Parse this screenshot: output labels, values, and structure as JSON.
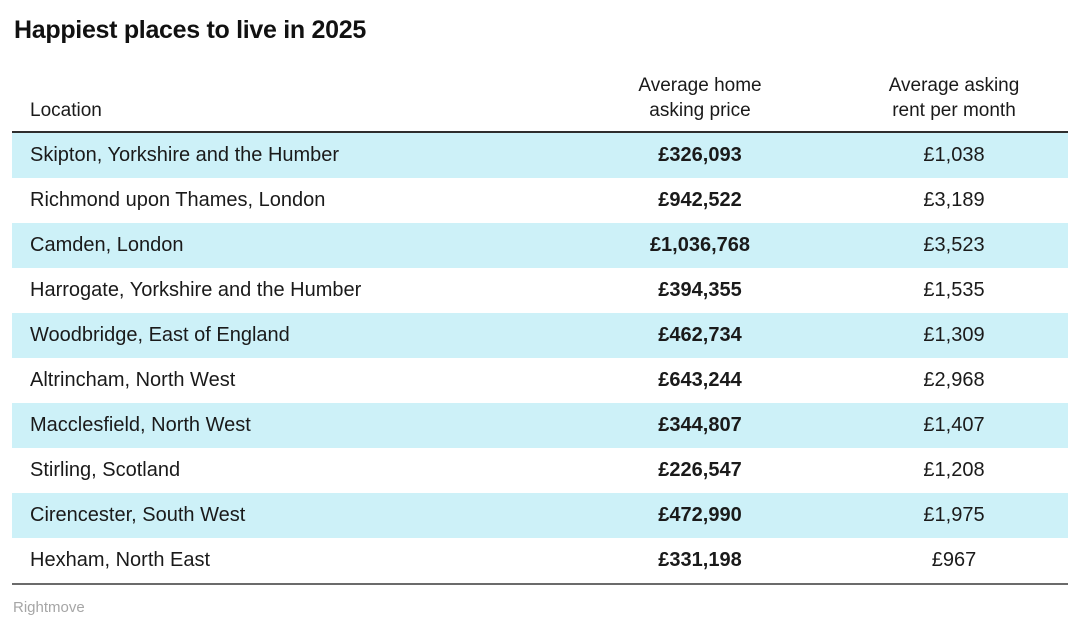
{
  "title": "Happiest places to live in 2025",
  "source": "Rightmove",
  "colors": {
    "row_stripe": "#cdf1f8",
    "header_border": "#2e2e2e",
    "bottom_border": "#6b6b6b",
    "text": "#1a1a1a",
    "source_text": "#a6a6a6"
  },
  "table": {
    "headers": {
      "location": "Location",
      "price": "Average home\nasking price",
      "rent": "Average asking\nrent per month"
    },
    "rows": [
      {
        "location": "Skipton, Yorkshire and the Humber",
        "price": "£326,093",
        "rent": "£1,038"
      },
      {
        "location": "Richmond upon Thames, London",
        "price": "£942,522",
        "rent": "£3,189"
      },
      {
        "location": "Camden, London",
        "price": "£1,036,768",
        "rent": "£3,523"
      },
      {
        "location": "Harrogate, Yorkshire and the Humber",
        "price": "£394,355",
        "rent": "£1,535"
      },
      {
        "location": "Woodbridge, East of England",
        "price": "£462,734",
        "rent": "£1,309"
      },
      {
        "location": "Altrincham, North West",
        "price": "£643,244",
        "rent": "£2,968"
      },
      {
        "location": "Macclesfield, North West",
        "price": "£344,807",
        "rent": "£1,407"
      },
      {
        "location": "Stirling, Scotland",
        "price": "£226,547",
        "rent": "£1,208"
      },
      {
        "location": "Cirencester, South West",
        "price": "£472,990",
        "rent": "£1,975"
      },
      {
        "location": "Hexham, North East",
        "price": "£331,198",
        "rent": "£967"
      }
    ]
  },
  "chart_data": {
    "type": "table",
    "title": "Happiest places to live in 2025",
    "columns": [
      "Location",
      "Average home asking price",
      "Average asking rent per month"
    ],
    "rows": [
      [
        "Skipton, Yorkshire and the Humber",
        326093,
        1038
      ],
      [
        "Richmond upon Thames, London",
        942522,
        3189
      ],
      [
        "Camden, London",
        1036768,
        3523
      ],
      [
        "Harrogate, Yorkshire and the Humber",
        394355,
        1535
      ],
      [
        "Woodbridge, East of England",
        462734,
        1309
      ],
      [
        "Altrincham, North West",
        643244,
        2968
      ],
      [
        "Macclesfield, North West",
        344807,
        1407
      ],
      [
        "Stirling, Scotland",
        226547,
        1208
      ],
      [
        "Cirencester, South West",
        472990,
        1975
      ],
      [
        "Hexham, North East",
        331198,
        967
      ]
    ],
    "currency": "GBP",
    "source": "Rightmove",
    "layout_hints": {
      "striped_rows": "odd",
      "stripe_color": "#cdf1f8",
      "price_column_bold": true
    }
  }
}
